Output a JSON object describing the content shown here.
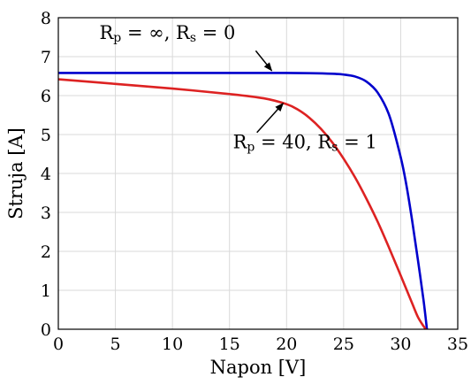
{
  "chart_data": {
    "type": "line",
    "xlabel": "Napon [V]",
    "ylabel": "Struja [A]",
    "xlim": [
      0,
      35
    ],
    "ylim": [
      0,
      8
    ],
    "xticks": [
      0,
      5,
      10,
      15,
      20,
      25,
      30,
      35
    ],
    "yticks": [
      0,
      1,
      2,
      3,
      4,
      5,
      6,
      7,
      8
    ],
    "xtick_labels": [
      "0",
      "5",
      "10",
      "15",
      "20",
      "25",
      "30",
      "35"
    ],
    "ytick_labels": [
      "0",
      "1",
      "2",
      "3",
      "4",
      "5",
      "6",
      "7",
      "8"
    ],
    "grid": true,
    "legend": "none",
    "series": [
      {
        "label": "R_p = ∞, R_s = 0",
        "color": "#0000cc",
        "x": [
          0,
          5,
          10,
          15,
          20,
          22,
          24,
          25,
          26,
          27,
          28,
          29,
          30,
          30.5,
          31,
          31.5,
          32,
          32.3
        ],
        "y": [
          6.58,
          6.58,
          6.58,
          6.58,
          6.58,
          6.575,
          6.56,
          6.54,
          6.49,
          6.36,
          6.07,
          5.49,
          4.42,
          3.7,
          2.8,
          1.8,
          0.75,
          0
        ]
      },
      {
        "label": "R_p = 40, R_s = 1",
        "color": "#dd2222",
        "x": [
          0,
          5,
          10,
          15,
          18,
          20,
          21,
          22,
          23,
          24,
          25,
          26,
          27,
          28,
          29,
          30,
          31,
          31.5,
          32,
          32.2
        ],
        "y": [
          6.42,
          6.3,
          6.18,
          6.04,
          5.93,
          5.78,
          5.64,
          5.43,
          5.15,
          4.8,
          4.38,
          3.9,
          3.35,
          2.75,
          2.08,
          1.38,
          0.67,
          0.32,
          0.08,
          0
        ]
      }
    ],
    "annotations": [
      {
        "id": "ideal",
        "main": "R",
        "sub": "p",
        "mid": " = ∞, R",
        "sub2": "s",
        "end": " = 0",
        "text_anchor": [
          3.6,
          7.45
        ],
        "arrow_from": [
          17.3,
          7.15
        ],
        "arrow_to": [
          18.7,
          6.64
        ]
      },
      {
        "id": "real",
        "main": "R",
        "sub": "p",
        "mid": " = 40, R",
        "sub2": "s",
        "end": " = 1",
        "text_anchor": [
          15.3,
          4.65
        ],
        "arrow_from": [
          17.4,
          5.05
        ],
        "arrow_to": [
          19.7,
          5.8
        ]
      }
    ]
  }
}
